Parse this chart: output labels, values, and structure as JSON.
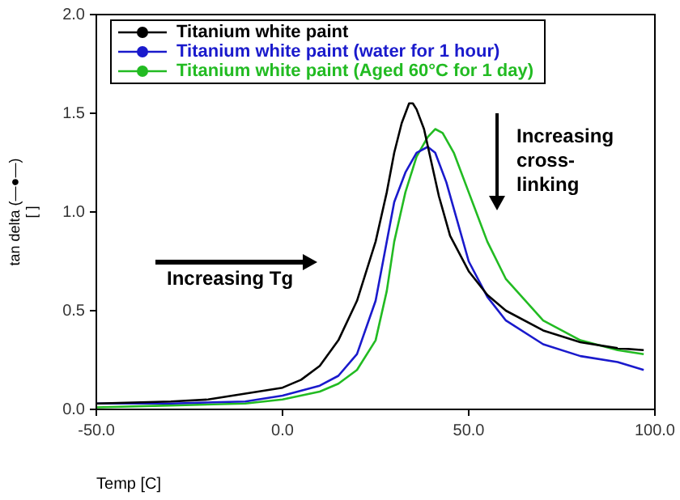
{
  "chart_data": {
    "type": "line",
    "xlabel": "Temp [C]",
    "ylabel": "tan delta (—●—)\n[ ]",
    "xlim": [
      -50,
      100
    ],
    "xticks": [
      {
        "value": -50,
        "label": "-50.0"
      },
      {
        "value": 0,
        "label": "0.0"
      },
      {
        "value": 50,
        "label": "50.0"
      },
      {
        "value": 100,
        "label": "100.0"
      }
    ],
    "ylim": [
      0,
      2
    ],
    "yticks": [
      {
        "value": 0,
        "label": "0.0"
      },
      {
        "value": 0.5,
        "label": "0.5"
      },
      {
        "value": 1,
        "label": "1.0"
      },
      {
        "value": 1.5,
        "label": "1.5"
      },
      {
        "value": 2,
        "label": "2.0"
      }
    ],
    "grid": false,
    "legend": "top left",
    "line_style": "solid",
    "annotations": [
      "Increasing Tg",
      "Increasing\ncross-\nlinking"
    ],
    "series": [
      {
        "name": "Titanium white paint",
        "color": "#000000",
        "x": [
          -50,
          -30,
          -20,
          -10,
          0,
          5,
          10,
          15,
          20,
          25,
          28,
          30,
          32,
          34,
          35,
          36,
          38,
          40,
          42,
          45,
          50,
          55,
          60,
          70,
          80,
          90,
          97
        ],
        "values": [
          0.03,
          0.04,
          0.05,
          0.08,
          0.11,
          0.15,
          0.22,
          0.35,
          0.55,
          0.85,
          1.1,
          1.3,
          1.45,
          1.55,
          1.55,
          1.52,
          1.42,
          1.25,
          1.08,
          0.88,
          0.7,
          0.58,
          0.5,
          0.4,
          0.34,
          0.31,
          0.3
        ]
      },
      {
        "name": "Titanium white paint (water for 1 hour)",
        "color": "#1a1acc",
        "x": [
          -50,
          -30,
          -10,
          0,
          10,
          15,
          20,
          25,
          28,
          30,
          33,
          36,
          39,
          41,
          44,
          47,
          50,
          55,
          60,
          70,
          80,
          90,
          97
        ],
        "values": [
          0.03,
          0.03,
          0.04,
          0.07,
          0.12,
          0.17,
          0.28,
          0.55,
          0.85,
          1.05,
          1.2,
          1.3,
          1.33,
          1.3,
          1.15,
          0.95,
          0.75,
          0.57,
          0.45,
          0.33,
          0.27,
          0.24,
          0.2
        ]
      },
      {
        "name": "Titanium white paint (Aged 60°C for 1 day)",
        "color": "#22bb22",
        "x": [
          -50,
          -30,
          -10,
          0,
          10,
          15,
          20,
          25,
          28,
          30,
          33,
          36,
          39,
          41,
          43,
          46,
          50,
          55,
          60,
          70,
          80,
          90,
          97
        ],
        "values": [
          0.01,
          0.02,
          0.03,
          0.05,
          0.09,
          0.13,
          0.2,
          0.35,
          0.6,
          0.85,
          1.1,
          1.28,
          1.38,
          1.42,
          1.4,
          1.3,
          1.1,
          0.85,
          0.66,
          0.45,
          0.35,
          0.3,
          0.28
        ]
      }
    ]
  }
}
